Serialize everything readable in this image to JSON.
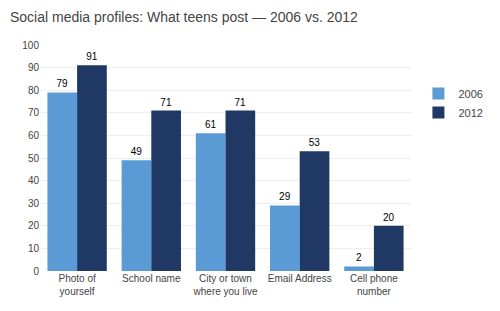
{
  "chart_data": {
    "type": "bar",
    "title": "Social media profiles: What teens post — 2006 vs. 2012",
    "categories": [
      "Photo of\nyourself",
      "School name",
      "City or town\nwhere you live",
      "Email Address",
      "Cell phone\nnumber"
    ],
    "series": [
      {
        "name": "2006",
        "color": "#5b9bd5",
        "values": [
          79,
          49,
          61,
          29,
          2
        ]
      },
      {
        "name": "2012",
        "color": "#1f3864",
        "values": [
          91,
          71,
          71,
          53,
          20
        ]
      }
    ],
    "ylim": [
      0,
      100
    ],
    "yticks": [
      0,
      10,
      20,
      30,
      40,
      50,
      60,
      70,
      80,
      90,
      100
    ],
    "grid": true,
    "legend": "right",
    "data_labels": true
  }
}
